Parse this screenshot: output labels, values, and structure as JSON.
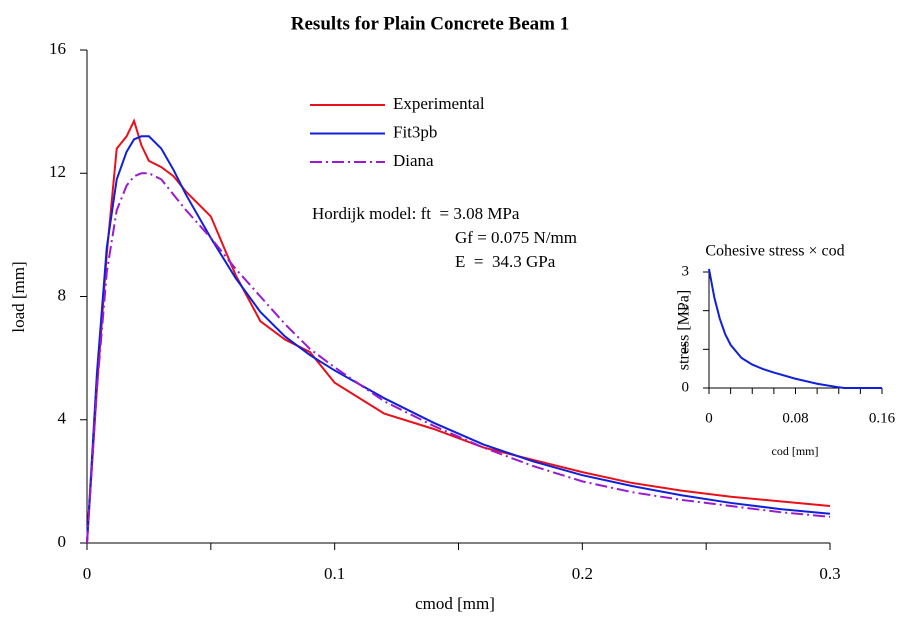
{
  "chart_data": [
    {
      "type": "line",
      "title": "Results for Plain Concrete Beam 1",
      "xlabel": "cmod [mm]",
      "ylabel": "load [mm]",
      "x": [
        0,
        0.004,
        0.008,
        0.012,
        0.016,
        0.019,
        0.022,
        0.025,
        0.03,
        0.035,
        0.04,
        0.05,
        0.06,
        0.07,
        0.08,
        0.09,
        0.1,
        0.12,
        0.14,
        0.16,
        0.18,
        0.2,
        0.22,
        0.24,
        0.26,
        0.28,
        0.3
      ],
      "series": [
        {
          "name": "Experimental",
          "color": "#e8101a",
          "style": "solid",
          "values": [
            0,
            5.0,
            9.4,
            12.8,
            13.2,
            13.7,
            12.9,
            12.4,
            12.2,
            11.9,
            11.4,
            10.6,
            8.7,
            7.2,
            6.6,
            6.2,
            5.2,
            4.2,
            3.7,
            3.1,
            2.7,
            2.3,
            1.95,
            1.7,
            1.5,
            1.35,
            1.2
          ]
        },
        {
          "name": "Fit3pb",
          "color": "#1020d8",
          "style": "solid",
          "values": [
            0,
            5.5,
            9.6,
            11.8,
            12.7,
            13.1,
            13.2,
            13.2,
            12.8,
            12.1,
            11.3,
            9.9,
            8.6,
            7.5,
            6.7,
            6.1,
            5.6,
            4.7,
            3.9,
            3.2,
            2.65,
            2.2,
            1.85,
            1.55,
            1.3,
            1.1,
            0.95
          ]
        },
        {
          "name": "Diana",
          "color": "#9a1ad0",
          "style": "dashdot",
          "values": [
            0,
            5.0,
            8.8,
            10.8,
            11.6,
            11.9,
            12.0,
            12.0,
            11.8,
            11.3,
            10.8,
            9.9,
            8.9,
            8.0,
            7.1,
            6.3,
            5.7,
            4.6,
            3.8,
            3.1,
            2.5,
            2.0,
            1.65,
            1.4,
            1.2,
            1.0,
            0.85
          ]
        }
      ],
      "xlim": [
        0,
        0.3
      ],
      "xticks": [
        0,
        0.1,
        0.2,
        0.3
      ],
      "xminor_ticks": [
        0.05,
        0.15,
        0.25
      ],
      "ylim": [
        0,
        16
      ],
      "yticks": [
        0,
        4,
        8,
        12,
        16
      ],
      "legend": "upper center",
      "annotations": [
        "Hordijk model: ft  = 3.08 MPa",
        "Gf = 0.075 N/mm",
        "E  =  34.3 GPa"
      ]
    },
    {
      "type": "line",
      "title": "Cohesive stress × cod",
      "xlabel": "cod [mm]",
      "ylabel": "stress [MPa]",
      "x": [
        0,
        0.005,
        0.01,
        0.015,
        0.02,
        0.03,
        0.04,
        0.05,
        0.06,
        0.08,
        0.1,
        0.12,
        0.125,
        0.14,
        0.16
      ],
      "series": [
        {
          "color": "#1020d8",
          "style": "solid",
          "values": [
            3.08,
            2.33,
            1.79,
            1.39,
            1.115,
            0.78,
            0.605,
            0.49,
            0.4,
            0.24,
            0.11,
            0.018,
            0,
            0,
            0
          ]
        }
      ],
      "xlim": [
        0,
        0.16
      ],
      "xticks": [
        0,
        0.08,
        0.16
      ],
      "xminor_ticks": [
        0.02,
        0.04,
        0.06,
        0.1,
        0.12,
        0.14
      ],
      "ylim": [
        0,
        3
      ],
      "yticks": [
        0,
        1,
        2,
        3
      ]
    }
  ]
}
